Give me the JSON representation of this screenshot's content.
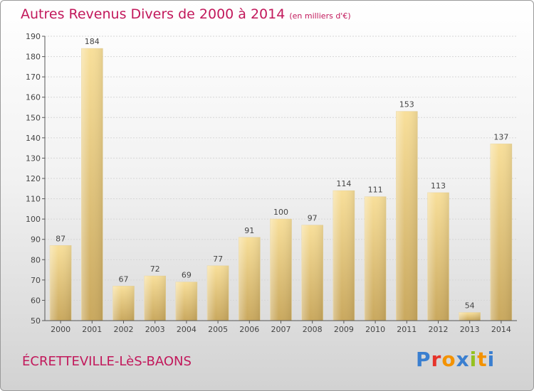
{
  "chart_data": {
    "type": "bar",
    "title": "Autres Revenus Divers de 2000 à 2014",
    "subtitle": "(en milliers d'€)",
    "categories": [
      "2000",
      "2001",
      "2002",
      "2003",
      "2004",
      "2005",
      "2006",
      "2007",
      "2008",
      "2009",
      "2010",
      "2011",
      "2012",
      "2013",
      "2014"
    ],
    "values": [
      87,
      184,
      67,
      72,
      69,
      77,
      91,
      100,
      97,
      114,
      111,
      153,
      113,
      54,
      137
    ],
    "ylim": [
      50,
      190
    ],
    "yticks": [
      50,
      60,
      70,
      80,
      90,
      100,
      110,
      120,
      130,
      140,
      150,
      160,
      170,
      180,
      190
    ],
    "grid": true,
    "bar_color": "#e8c67a"
  },
  "footer": {
    "town": "ÉCRETTEVILLE-LèS-BAONS",
    "logo_letters": [
      "P",
      "r",
      "o",
      "x",
      "i",
      "t",
      "i"
    ],
    "logo_colors": [
      "#3a7fd0",
      "#e6332a",
      "#f39200",
      "#3a7fd0",
      "#95c11f",
      "#f39200",
      "#3a7fd0"
    ]
  }
}
